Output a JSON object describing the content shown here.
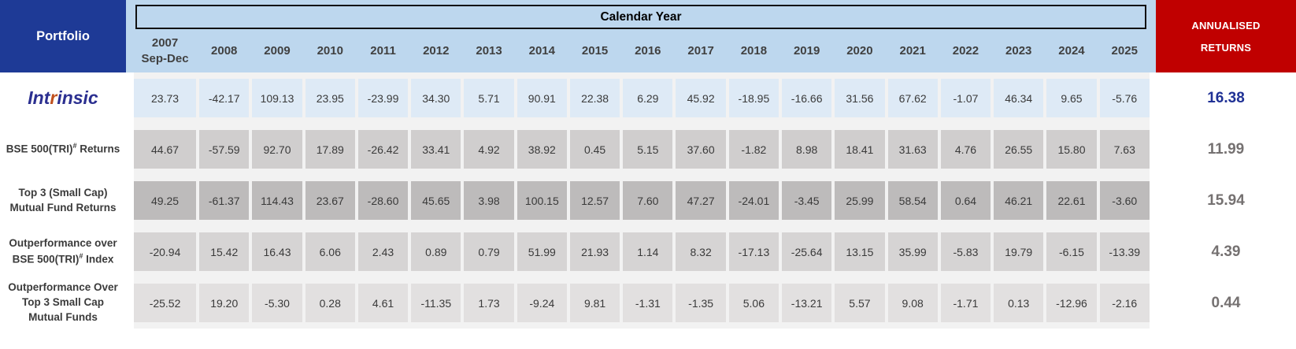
{
  "header": {
    "portfolio_label": "Portfolio",
    "calendar_year_label": "Calendar Year",
    "annualised_label_line1": "ANNUALISED",
    "annualised_label_line2": "RETURNS"
  },
  "logo": {
    "pre": "Int",
    "accent": "r",
    "post": "insic"
  },
  "colors": {
    "portfolio_bg": "#1E3A96",
    "header_band_bg": "#BDD7EE",
    "annualised_bg": "#C00000",
    "logo_blue": "#2B2F90",
    "logo_accent": "#C0501E",
    "row_cell_bg": [
      "#DEEAF6",
      "#D0CECE",
      "#BDBBBB",
      "#D6D4D4",
      "#E2E0E0"
    ],
    "annualised_value_colors": [
      "#1F3195",
      "#757171",
      "#757171",
      "#757171",
      "#757171"
    ]
  },
  "chart_data": {
    "type": "table",
    "year_columns": [
      [
        "2007",
        "Sep-Dec"
      ],
      [
        "2008"
      ],
      [
        "2009"
      ],
      [
        "2010"
      ],
      [
        "2011"
      ],
      [
        "2012"
      ],
      [
        "2013"
      ],
      [
        "2014"
      ],
      [
        "2015"
      ],
      [
        "2016"
      ],
      [
        "2017"
      ],
      [
        "2018"
      ],
      [
        "2019"
      ],
      [
        "2020"
      ],
      [
        "2021"
      ],
      [
        "2022"
      ],
      [
        "2023"
      ],
      [
        "2024"
      ],
      [
        "2025"
      ]
    ],
    "annualised_column": "ANNUALISED RETURNS",
    "rows": [
      {
        "type": "logo",
        "label_lines": [
          "Intrinsic"
        ],
        "values": [
          "23.73",
          "-42.17",
          "109.13",
          "23.95",
          "-23.99",
          "34.30",
          "5.71",
          "90.91",
          "22.38",
          "6.29",
          "45.92",
          "-18.95",
          "-16.66",
          "31.56",
          "67.62",
          "-1.07",
          "46.34",
          "9.65",
          "-5.76"
        ],
        "annualised": "16.38"
      },
      {
        "type": "text",
        "label_lines": [
          "BSE 500(TRI)# Returns"
        ],
        "values": [
          "44.67",
          "-57.59",
          "92.70",
          "17.89",
          "-26.42",
          "33.41",
          "4.92",
          "38.92",
          "0.45",
          "5.15",
          "37.60",
          "-1.82",
          "8.98",
          "18.41",
          "31.63",
          "4.76",
          "26.55",
          "15.80",
          "7.63"
        ],
        "annualised": "11.99"
      },
      {
        "type": "text",
        "label_lines": [
          "Top 3 (Small Cap)",
          "Mutual Fund Returns"
        ],
        "values": [
          "49.25",
          "-61.37",
          "114.43",
          "23.67",
          "-28.60",
          "45.65",
          "3.98",
          "100.15",
          "12.57",
          "7.60",
          "47.27",
          "-24.01",
          "-3.45",
          "25.99",
          "58.54",
          "0.64",
          "46.21",
          "22.61",
          "-3.60"
        ],
        "annualised": "15.94"
      },
      {
        "type": "text",
        "label_lines": [
          "Outperformance over",
          "BSE 500(TRI)# Index"
        ],
        "values": [
          "-20.94",
          "15.42",
          "16.43",
          "6.06",
          "2.43",
          "0.89",
          "0.79",
          "51.99",
          "21.93",
          "1.14",
          "8.32",
          "-17.13",
          "-25.64",
          "13.15",
          "35.99",
          "-5.83",
          "19.79",
          "-6.15",
          "-13.39"
        ],
        "annualised": "4.39"
      },
      {
        "type": "text",
        "label_lines": [
          "Outperformance Over",
          "Top 3 Small Cap",
          "Mutual Funds"
        ],
        "values": [
          "-25.52",
          "19.20",
          "-5.30",
          "0.28",
          "4.61",
          "-11.35",
          "1.73",
          "-9.24",
          "9.81",
          "-1.31",
          "-1.35",
          "5.06",
          "-13.21",
          "5.57",
          "9.08",
          "-1.71",
          "0.13",
          "-12.96",
          "-2.16"
        ],
        "annualised": "0.44"
      }
    ]
  }
}
